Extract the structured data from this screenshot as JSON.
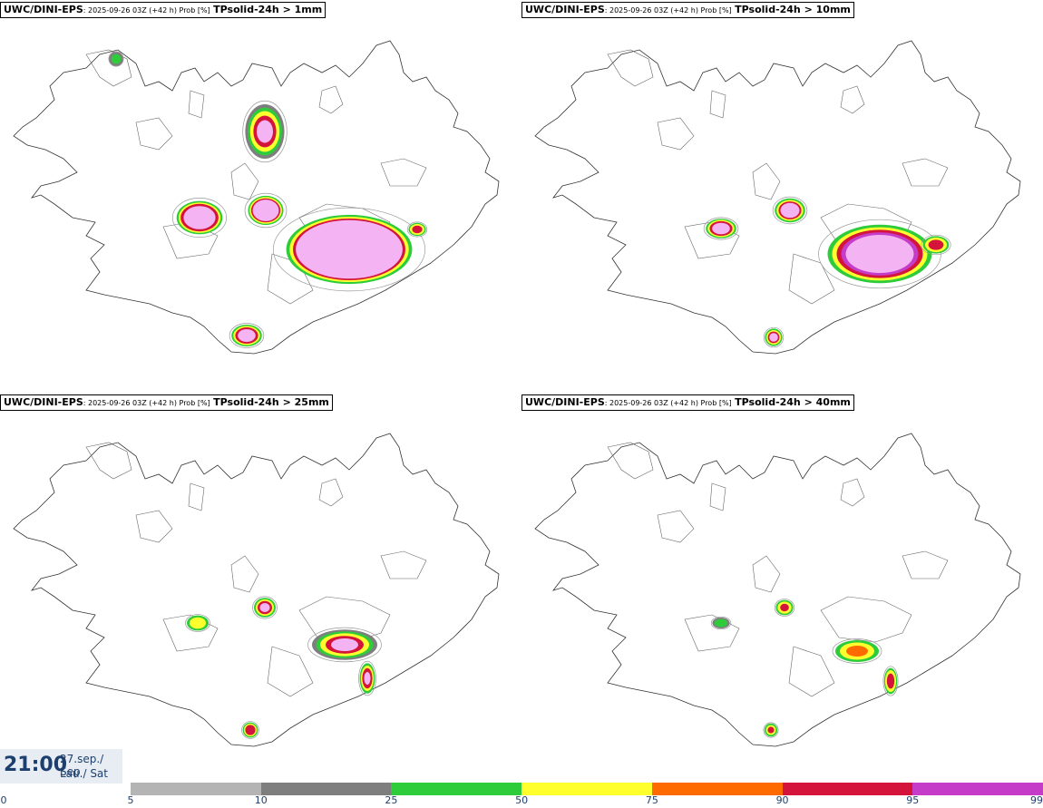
{
  "panels": [
    {
      "model": "UWC/DINI-EPS",
      "meta": ": 2025-09-26 03Z (+42 h) Prob [%]",
      "param": "TPsolid-24h > 1mm"
    },
    {
      "model": "UWC/DINI-EPS",
      "meta": ": 2025-09-26 03Z (+42 h) Prob [%]",
      "param": "TPsolid-24h > 10mm"
    },
    {
      "model": "UWC/DINI-EPS",
      "meta": ": 2025-09-26 03Z (+42 h) Prob [%]",
      "param": "TPsolid-24h > 25mm"
    },
    {
      "model": "UWC/DINI-EPS",
      "meta": ": 2025-09-26 03Z (+42 h) Prob [%]",
      "param": "TPsolid-24h > 40mm"
    }
  ],
  "valid_time": {
    "time": "21:00",
    "date": "27.sep./ Sep",
    "day": "Lau./ Sat"
  },
  "colorbar": {
    "ticks": [
      "0",
      "5",
      "10",
      "25",
      "50",
      "75",
      "90",
      "95",
      "99"
    ],
    "colors": [
      "#ffffff",
      "#b4b4b4",
      "#7e7e7e",
      "#2ecc3a",
      "#ffff2e",
      "#ff6a00",
      "#d5143c",
      "#c43cc8",
      "#f4b4f4"
    ]
  }
}
